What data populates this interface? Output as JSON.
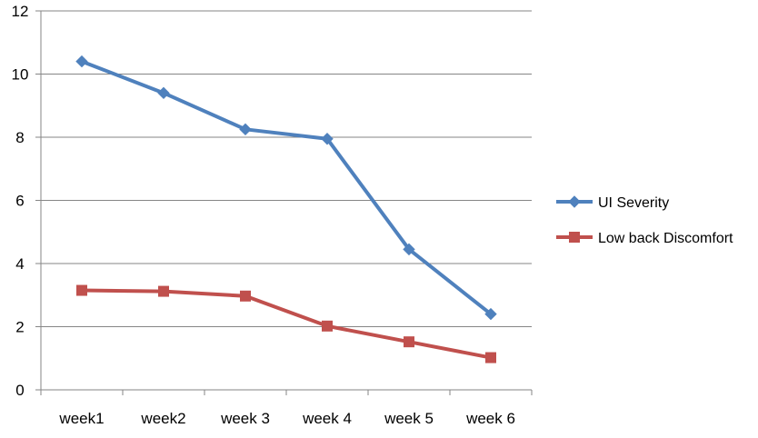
{
  "chart_data": {
    "type": "line",
    "categories": [
      "week1",
      "week2",
      "week 3",
      "week 4",
      "week 5",
      "week 6"
    ],
    "ylim": [
      0,
      12
    ],
    "yticks": [
      "0",
      "2",
      "4",
      "6",
      "8",
      "10",
      "12"
    ],
    "grid": true,
    "legend_position": "right",
    "series": [
      {
        "name": "UI Severity",
        "values": [
          10.4,
          9.4,
          8.25,
          7.95,
          4.45,
          2.4
        ],
        "color": "#4F81BD",
        "marker": "diamond"
      },
      {
        "name": "Low back Discomfort",
        "values": [
          3.15,
          3.12,
          2.97,
          2.02,
          1.52,
          1.02
        ],
        "color": "#C0504D",
        "marker": "square"
      }
    ]
  }
}
